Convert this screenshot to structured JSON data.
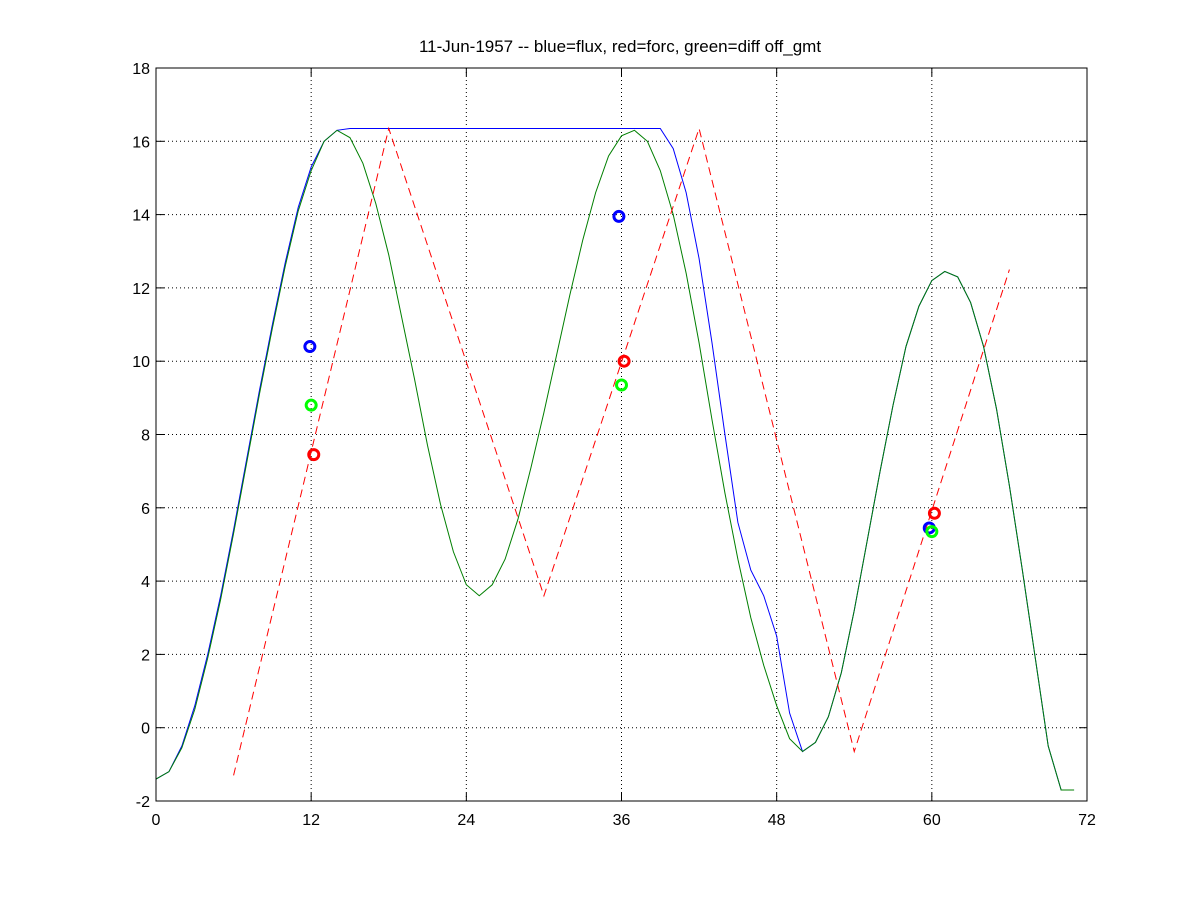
{
  "chart_data": {
    "type": "line",
    "title": "11-Jun-1957 -- blue=flux, red=forc, green=diff off_gmt",
    "xlabel": "",
    "ylabel": "",
    "xlim": [
      0,
      72
    ],
    "ylim": [
      -2,
      18
    ],
    "xticks": [
      0,
      12,
      24,
      36,
      48,
      60,
      72
    ],
    "yticks": [
      -2,
      0,
      2,
      4,
      6,
      8,
      10,
      12,
      14,
      16,
      18
    ],
    "grid": true,
    "grid_style": "dotted",
    "colors": {
      "blue": "#0000ff",
      "red": "#ff0000",
      "green": "#007f00",
      "green_marker": "#00ff00",
      "axes": "#000000",
      "background": "#ffffff"
    },
    "series": [
      {
        "key": "flux",
        "color": "#0000ff",
        "style": "solid",
        "x": [
          0,
          1,
          2,
          3,
          4,
          5,
          6,
          7,
          8,
          9,
          10,
          11,
          12,
          13,
          14,
          15,
          16,
          17,
          18,
          19,
          20,
          21,
          22,
          23,
          24,
          25,
          26,
          27,
          28,
          29,
          30,
          31,
          32,
          33,
          34,
          35,
          36,
          37,
          38,
          39,
          40,
          41,
          42,
          43,
          44,
          45,
          46,
          47,
          48,
          49,
          50,
          51,
          52,
          53,
          54,
          55,
          56,
          57,
          58,
          59,
          60,
          61,
          62,
          63,
          64,
          65,
          66,
          67,
          68,
          69,
          70,
          71
        ],
        "y": [
          -1.4,
          -1.2,
          -0.5,
          0.6,
          2.0,
          3.6,
          5.4,
          7.3,
          9.2,
          11.0,
          12.7,
          14.2,
          15.3,
          16.0,
          16.3,
          16.35,
          16.35,
          16.35,
          16.35,
          16.35,
          16.35,
          16.35,
          16.35,
          16.35,
          16.35,
          16.35,
          16.35,
          16.35,
          16.35,
          16.35,
          16.35,
          16.35,
          16.35,
          16.35,
          16.35,
          16.35,
          16.35,
          16.35,
          16.35,
          16.35,
          15.8,
          14.6,
          12.8,
          10.5,
          8.0,
          5.6,
          4.3,
          3.6,
          2.5,
          0.4,
          -0.65,
          -0.4,
          0.3,
          1.5,
          3.2,
          5.1,
          7.0,
          8.8,
          10.4,
          11.5,
          12.2,
          12.45,
          12.3,
          11.6,
          10.4,
          8.7,
          6.6,
          4.3,
          1.9,
          -0.5,
          -1.7,
          -1.7
        ]
      },
      {
        "key": "diff",
        "color": "#007f00",
        "style": "solid",
        "x": [
          0,
          1,
          2,
          3,
          4,
          5,
          6,
          7,
          8,
          9,
          10,
          11,
          12,
          13,
          14,
          15,
          16,
          17,
          18,
          19,
          20,
          21,
          22,
          23,
          24,
          25,
          26,
          27,
          28,
          29,
          30,
          31,
          32,
          33,
          34,
          35,
          36,
          37,
          38,
          39,
          40,
          41,
          42,
          43,
          44,
          45,
          46,
          47,
          48,
          49,
          50,
          51,
          52,
          53,
          54,
          55,
          56,
          57,
          58,
          59,
          60,
          61,
          62,
          63,
          64,
          65,
          66,
          67,
          68,
          69,
          70,
          71
        ],
        "y": [
          -1.4,
          -1.2,
          -0.55,
          0.5,
          1.9,
          3.5,
          5.3,
          7.2,
          9.1,
          10.9,
          12.6,
          14.1,
          15.2,
          16.0,
          16.3,
          16.1,
          15.4,
          14.3,
          12.9,
          11.2,
          9.5,
          7.7,
          6.1,
          4.8,
          3.9,
          3.6,
          3.9,
          4.6,
          5.7,
          7.1,
          8.6,
          10.2,
          11.8,
          13.3,
          14.6,
          15.6,
          16.15,
          16.3,
          16.0,
          15.2,
          14.0,
          12.4,
          10.5,
          8.4,
          6.4,
          4.6,
          3.0,
          1.7,
          0.6,
          -0.3,
          -0.65,
          -0.4,
          0.3,
          1.5,
          3.2,
          5.1,
          7.0,
          8.8,
          10.4,
          11.5,
          12.2,
          12.45,
          12.3,
          11.6,
          10.4,
          8.7,
          6.6,
          4.3,
          1.9,
          -0.5,
          -1.7,
          -1.7
        ]
      },
      {
        "key": "forc",
        "color": "#ff0000",
        "style": "dashed",
        "x": [
          6,
          18,
          30,
          42,
          54,
          66
        ],
        "y": [
          -1.3,
          16.35,
          3.6,
          16.35,
          -0.65,
          12.5
        ]
      }
    ],
    "markers": [
      {
        "key": "flux-marker-1",
        "color": "#0000ff",
        "x": 11.9,
        "y": 10.4
      },
      {
        "key": "diff-marker-1",
        "color": "#00ff00",
        "x": 12.0,
        "y": 8.8
      },
      {
        "key": "forc-marker-1",
        "color": "#ff0000",
        "x": 12.2,
        "y": 7.45
      },
      {
        "key": "flux-marker-2",
        "color": "#0000ff",
        "x": 35.8,
        "y": 13.95
      },
      {
        "key": "forc-marker-2",
        "color": "#ff0000",
        "x": 36.2,
        "y": 10.0
      },
      {
        "key": "diff-marker-2",
        "color": "#00ff00",
        "x": 36.0,
        "y": 9.35
      },
      {
        "key": "flux-marker-3",
        "color": "#0000ff",
        "x": 59.8,
        "y": 5.45
      },
      {
        "key": "forc-marker-3",
        "color": "#ff0000",
        "x": 60.2,
        "y": 5.85
      },
      {
        "key": "diff-marker-3",
        "color": "#00ff00",
        "x": 60.0,
        "y": 5.35
      }
    ]
  }
}
